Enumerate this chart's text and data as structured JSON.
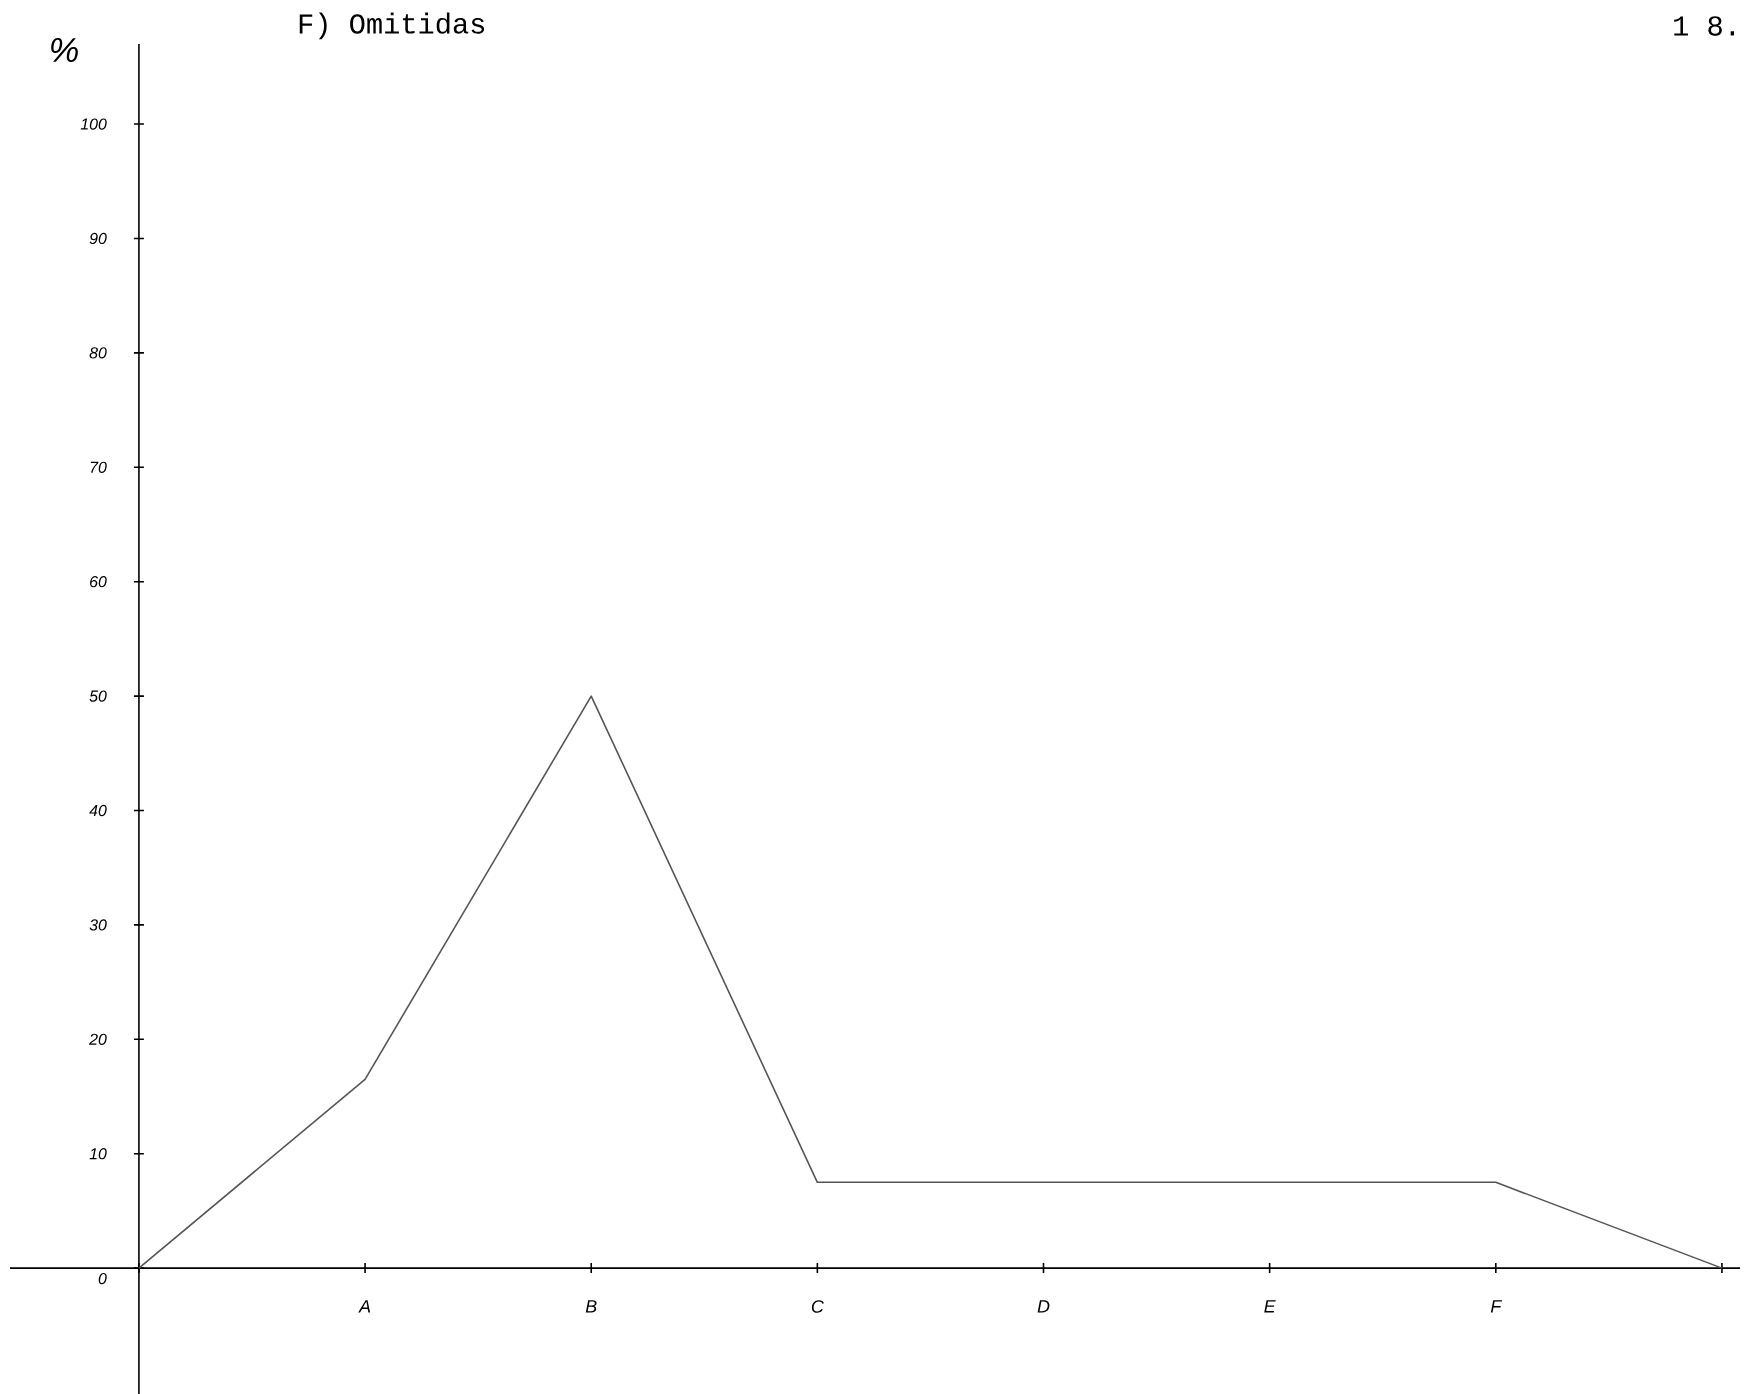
{
  "chart_data": {
    "type": "line",
    "title": "F) Omitidas",
    "ylabel": "%",
    "annotations": [
      "1 8."
    ],
    "categories": [
      null,
      "A",
      "B",
      "C",
      "D",
      "E",
      "F",
      null
    ],
    "values": [
      0,
      16.5,
      50,
      7.5,
      7.5,
      7.5,
      7.5,
      0
    ],
    "color": "#555555",
    "ylim": [
      -11,
      107
    ],
    "yticks": [
      0,
      10,
      20,
      30,
      40,
      50,
      60,
      70,
      80,
      90,
      100
    ]
  }
}
